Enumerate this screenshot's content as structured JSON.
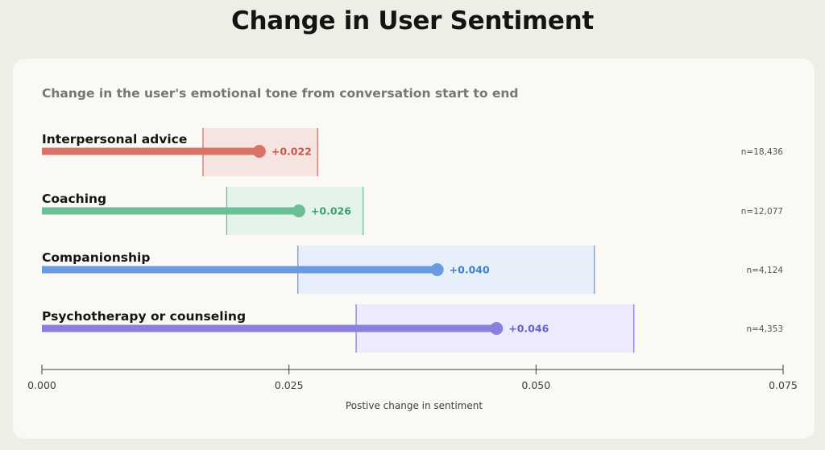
{
  "title": "Change in User Sentiment",
  "chart_data": {
    "type": "bar",
    "title": "Change in User Sentiment",
    "subtitle": "Change in the user's emotional tone from conversation start to end",
    "xlabel": "Postive change in sentiment",
    "ylabel": "",
    "xlim": [
      0,
      0.075
    ],
    "xticks": [
      0,
      0.025,
      0.05,
      0.075
    ],
    "xtick_labels": [
      "0.000",
      "0.025",
      "0.050",
      "0.075"
    ],
    "grid": false,
    "orientation": "horizontal",
    "categories": [
      "Interpersonal advice",
      "Coaching",
      "Companionship",
      "Psychotherapy or counseling"
    ],
    "values": [
      0.022,
      0.026,
      0.04,
      0.046
    ],
    "value_labels": [
      "+0.022",
      "+0.026",
      "+0.040",
      "+0.046"
    ],
    "ci_low": [
      0.0163,
      0.0187,
      0.0259,
      0.0318
    ],
    "ci_high": [
      0.0279,
      0.0325,
      0.0559,
      0.0599
    ],
    "n_labels": [
      "n=18,436",
      "n=12,077",
      "n=4,124",
      "n=4,353"
    ],
    "colors": [
      "#d97368",
      "#6cbf94",
      "#6a9be0",
      "#8a7fdc"
    ],
    "band_colors": [
      "#f5e4df",
      "#e4f4eb",
      "#e7f0fa",
      "#ecebfb"
    ],
    "label_colors": [
      "#c9554b",
      "#3e9e6d",
      "#3f7fc8",
      "#6b5fc4"
    ]
  }
}
